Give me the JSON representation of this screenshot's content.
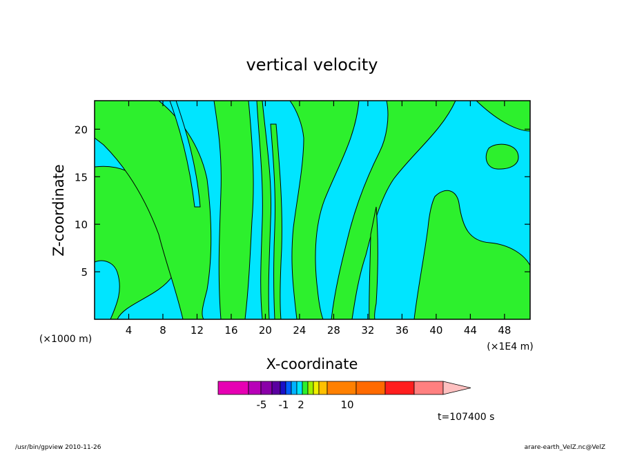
{
  "chart_data": {
    "type": "heatmap",
    "title": "vertical velocity",
    "xlabel": "X-coordinate",
    "ylabel": "Z-coordinate",
    "x_scale_note": "(×1E4 m)",
    "y_scale_note": "(×1000 m)",
    "xlim": [
      0,
      51
    ],
    "ylim": [
      0,
      23
    ],
    "x_ticks": [
      4,
      8,
      12,
      16,
      20,
      24,
      28,
      32,
      36,
      40,
      44,
      48
    ],
    "y_ticks": [
      5,
      10,
      15,
      20
    ],
    "colors": {
      "negative": "#00e5ff",
      "positive": "#2df02d",
      "contour": "#000000"
    },
    "colorbar": {
      "colors": [
        "#e600b3",
        "#b800b8",
        "#8a00a8",
        "#5a00a0",
        "#1a10c8",
        "#0060ff",
        "#00b4ff",
        "#00e5ff",
        "#2df02d",
        "#a0f000",
        "#f0f000",
        "#ffc000",
        "#ff8000",
        "#ff6a00",
        "#ff1e1e",
        "#ff8080",
        "#ffc0c0"
      ],
      "tick_labels": [
        "-5",
        "-1",
        "2",
        "10"
      ]
    },
    "time_label": "t=107400 s"
  },
  "footer": {
    "left": "/usr/bin/gpview   2010-11-26",
    "right": "arare-earth_VelZ.nc@VelZ"
  }
}
